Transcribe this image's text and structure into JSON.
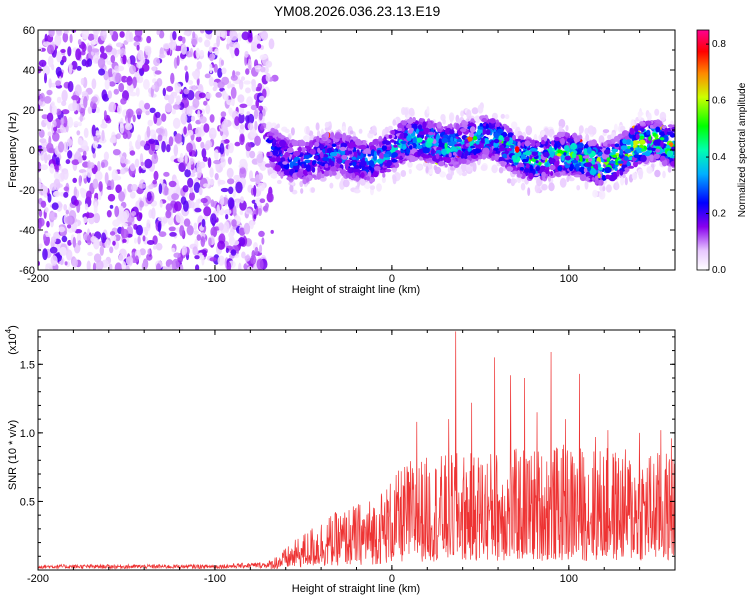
{
  "chart_data": [
    {
      "type": "heatmap",
      "title": "YM08.2026.036.23.13.E19",
      "xlabel": "Height of straight line (km)",
      "ylabel": "Frequency (Hz)",
      "xlim": [
        -200,
        160
      ],
      "ylim": [
        -60,
        60
      ],
      "xticks": [
        -200,
        -100,
        0,
        100
      ],
      "yticks": [
        -60,
        -40,
        -20,
        0,
        20,
        40,
        60
      ],
      "colorbar": {
        "label": "Normalized spectral amplitude",
        "range": [
          0,
          0.85
        ],
        "ticks": [
          "0.0",
          "0.2",
          "0.4",
          "0.6",
          "0.8"
        ]
      },
      "regions": [
        {
          "name": "broadband noise",
          "x_range": [
            -200,
            -70
          ],
          "freq_range": [
            -60,
            60
          ],
          "amplitude": "low (0.05-0.15)"
        },
        {
          "name": "narrowband track",
          "x_range": [
            -70,
            160
          ],
          "center_freq_hz": 0,
          "half_width_hz": 10,
          "amplitude": "0.1-0.8"
        }
      ]
    },
    {
      "type": "line",
      "series_name": "SNR",
      "color": "#ee3333",
      "xlabel": "Height of straight line (km)",
      "ylabel": "SNR (10 * v/v)",
      "scale_label": "(x10",
      "scale_exp": "4",
      "scale_close": ")",
      "xlim": [
        -200,
        160
      ],
      "ylim": [
        0,
        17500
      ],
      "xticks": [
        -200,
        -100,
        0,
        100
      ],
      "yticks": [
        5000,
        10000,
        15000
      ],
      "ytick_labels": [
        "0.5",
        "1.0",
        "1.5"
      ],
      "envelope": [
        {
          "x": -200,
          "y": 400
        },
        {
          "x": -100,
          "y": 400
        },
        {
          "x": -70,
          "y": 600
        },
        {
          "x": -60,
          "y": 1500
        },
        {
          "x": -40,
          "y": 3500
        },
        {
          "x": -10,
          "y": 5000
        },
        {
          "x": 10,
          "y": 7500
        },
        {
          "x": 40,
          "y": 8000
        },
        {
          "x": 100,
          "y": 8500
        },
        {
          "x": 160,
          "y": 8000
        }
      ],
      "peaks": [
        {
          "x": 14,
          "y": 10800
        },
        {
          "x": 32,
          "y": 11000
        },
        {
          "x": 36,
          "y": 17400
        },
        {
          "x": 45,
          "y": 12200
        },
        {
          "x": 58,
          "y": 15500
        },
        {
          "x": 67,
          "y": 14200
        },
        {
          "x": 75,
          "y": 14000
        },
        {
          "x": 82,
          "y": 11500
        },
        {
          "x": 90,
          "y": 15900
        },
        {
          "x": 98,
          "y": 11000
        },
        {
          "x": 106,
          "y": 14300
        },
        {
          "x": 115,
          "y": 9700
        },
        {
          "x": 122,
          "y": 10200
        },
        {
          "x": 140,
          "y": 10000
        },
        {
          "x": 152,
          "y": 10200
        },
        {
          "x": 158,
          "y": 9600
        }
      ]
    }
  ]
}
